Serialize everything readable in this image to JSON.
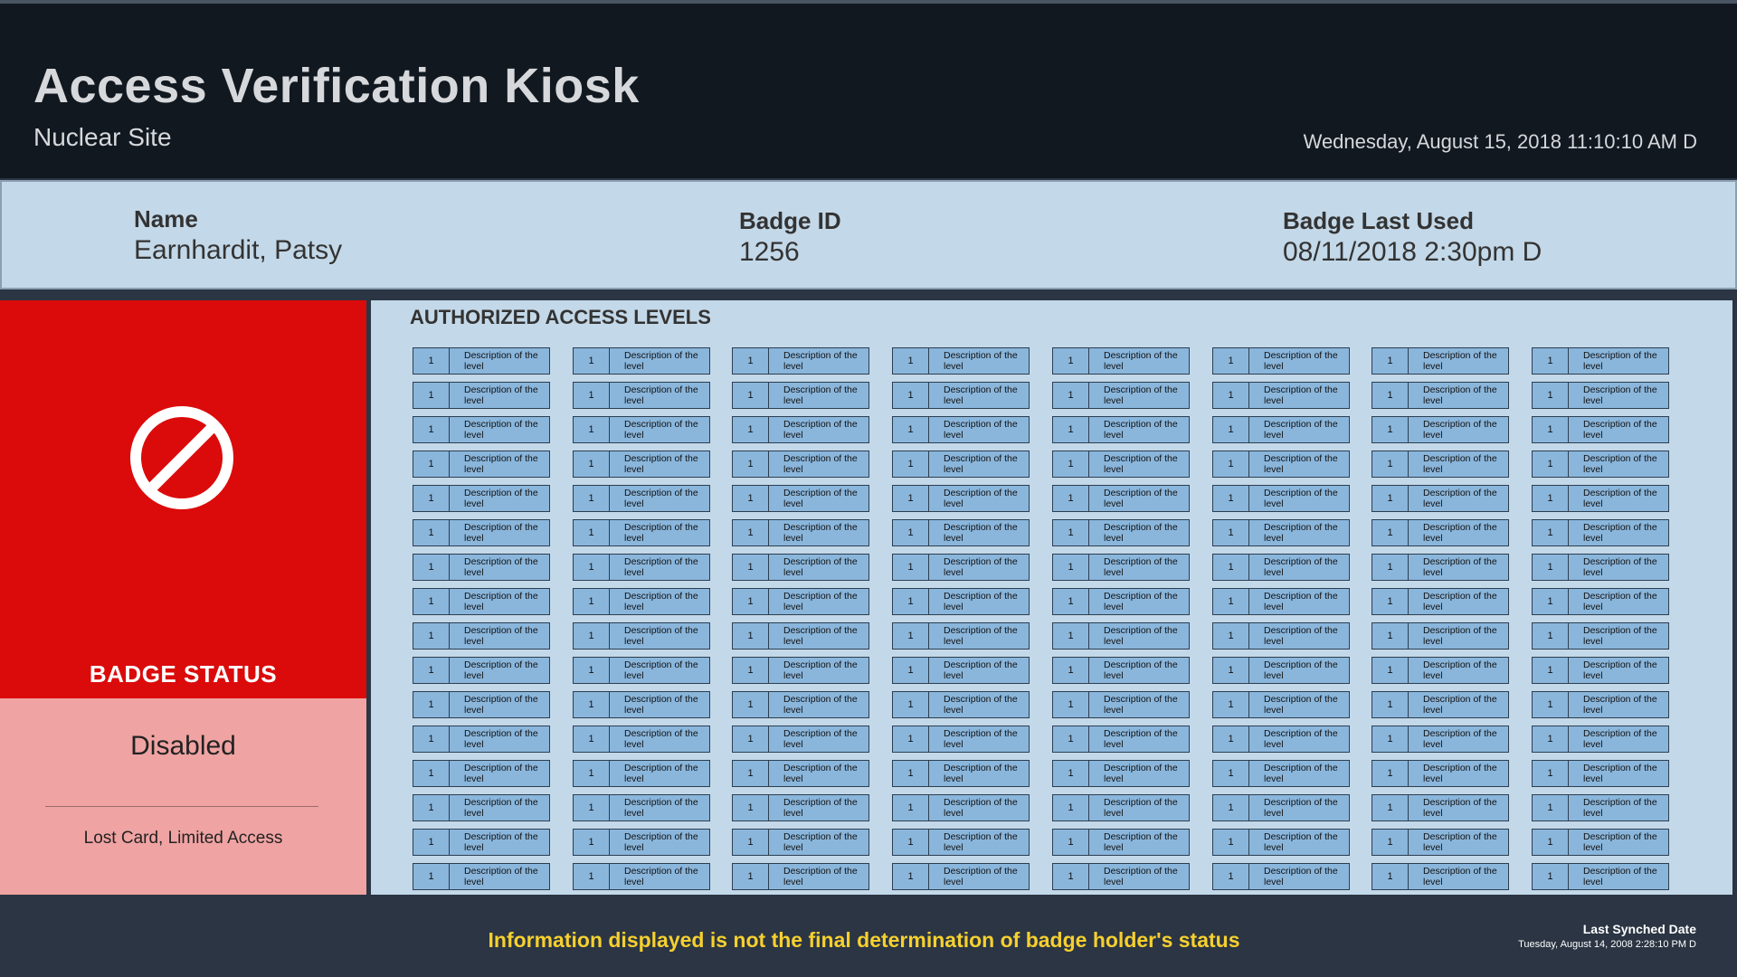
{
  "header": {
    "title": "Access Verification Kiosk",
    "subtitle": "Nuclear Site",
    "datetime": "Wednesday, August 15, 2018 11:10:10 AM D"
  },
  "badge_info": {
    "name_label": "Name",
    "name_value": "Earnhardit, Patsy",
    "badge_id_label": "Badge ID",
    "badge_id_value": "1256",
    "last_used_label": "Badge Last Used",
    "last_used_value": "08/11/2018 2:30pm D"
  },
  "badge_status": {
    "icon": "prohibited-icon",
    "label": "BADGE STATUS",
    "value": "Disabled",
    "reason": "Lost Card, Limited Access",
    "colors": {
      "alert": "#db0b0b",
      "alert_light": "#f0a3a3"
    }
  },
  "access_levels": {
    "title": "AUTHORIZED ACCESS LEVELS",
    "columns": 8,
    "rows": 16,
    "level_number": "1",
    "level_description": "Description of the level"
  },
  "footer": {
    "disclaimer": "Information displayed is not the final determination of badge holder's status",
    "sync_label": "Last Synched Date",
    "sync_value": "Tuesday, August 14, 2008 2:28:10 PM D"
  }
}
